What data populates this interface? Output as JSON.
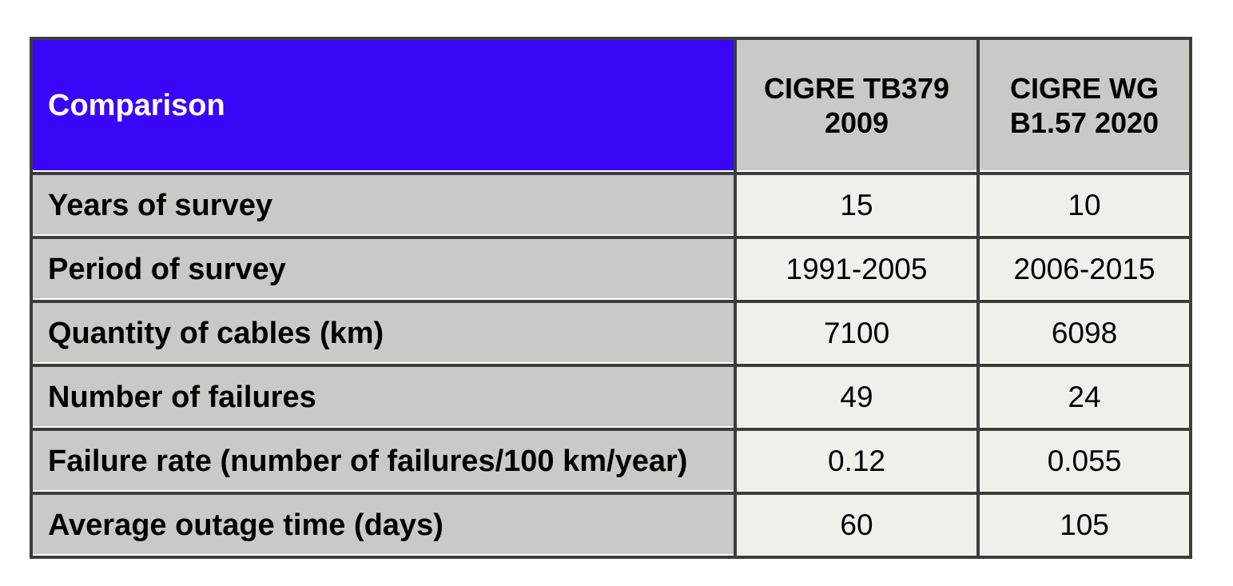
{
  "table": {
    "header": {
      "corner_label": "Comparison",
      "columns": [
        "CIGRE TB379 2009",
        "CIGRE WG B1.57 2020"
      ]
    },
    "rows": [
      {
        "label": "Years of survey",
        "values": [
          "15",
          "10"
        ]
      },
      {
        "label": "Period of survey",
        "values": [
          "1991-2005",
          "2006-2015"
        ]
      },
      {
        "label": "Quantity of cables (km)",
        "values": [
          "7100",
          "6098"
        ]
      },
      {
        "label": "Number of failures",
        "values": [
          "49",
          "24"
        ]
      },
      {
        "label": "Failure rate (number of failures/100 km/year)",
        "values": [
          "0.12",
          "0.055"
        ]
      },
      {
        "label": "Average outage time (days)",
        "values": [
          "60",
          "105"
        ]
      }
    ],
    "colors": {
      "header_corner_bg": "#3a06f8",
      "header_corner_text": "#ffffff",
      "header_column_bg": "#c9c9c5",
      "row_label_bg": "#c9c9c5",
      "value_cell_bg": "#f0efea",
      "grid_border": "#3c3c3c",
      "text": "#000000"
    }
  },
  "chart_data": {
    "type": "table",
    "title": "Comparison",
    "columns": [
      "Comparison",
      "CIGRE TB379 2009",
      "CIGRE WG B1.57 2020"
    ],
    "rows": [
      [
        "Years of survey",
        "15",
        "10"
      ],
      [
        "Period of survey",
        "1991-2005",
        "2006-2015"
      ],
      [
        "Quantity of cables (km)",
        "7100",
        "6098"
      ],
      [
        "Number of failures",
        "49",
        "24"
      ],
      [
        "Failure rate (number of failures/100 km/year)",
        "0.12",
        "0.055"
      ],
      [
        "Average outage time (days)",
        "60",
        "105"
      ]
    ]
  }
}
